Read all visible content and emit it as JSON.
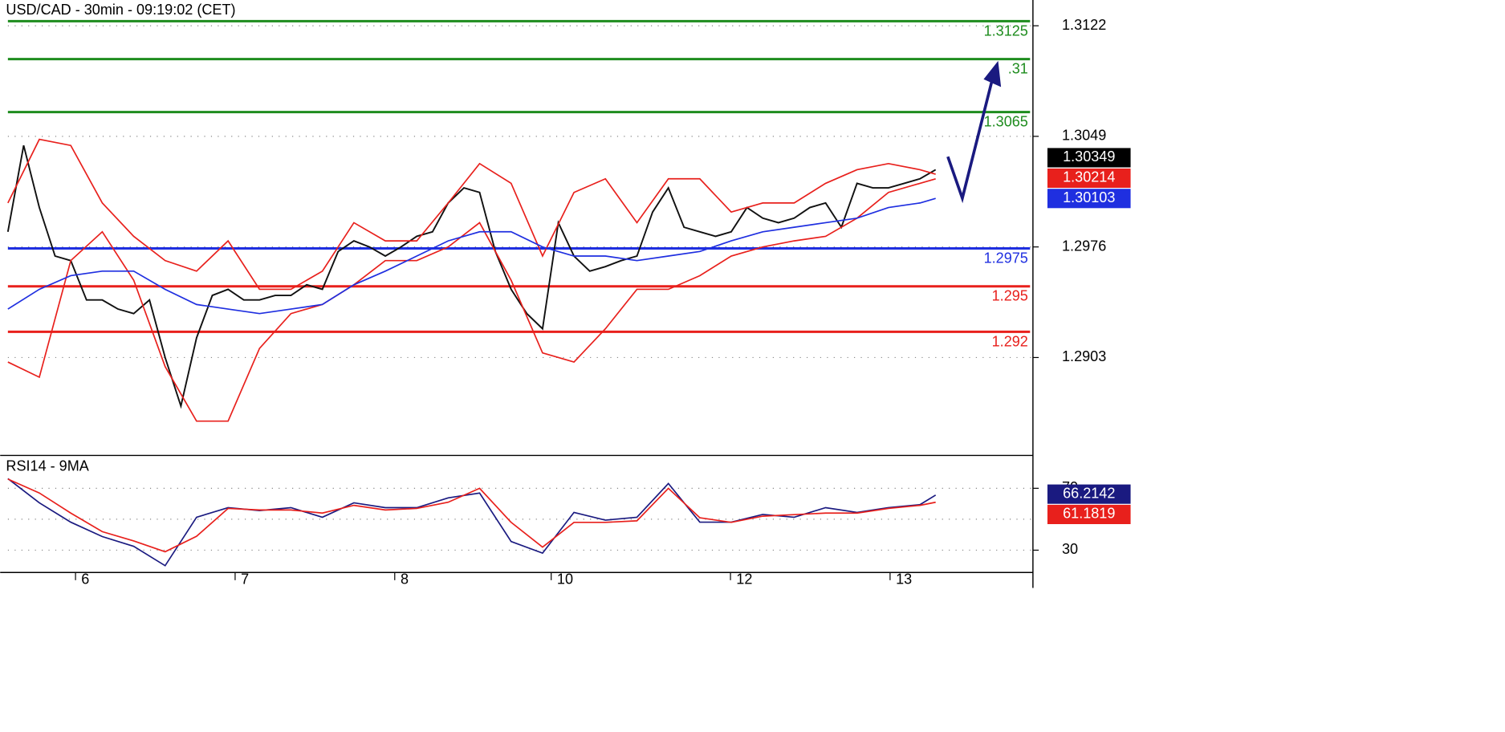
{
  "chart_data": [
    {
      "type": "line",
      "title": "USD/CAD - 30min - 09:19:02 (CET)",
      "xlim": [
        0,
        130
      ],
      "ylim": [
        1.2839,
        1.3139
      ],
      "yticks": [
        1.3122,
        1.3049,
        1.2976,
        1.2903
      ],
      "grid": true,
      "series": [
        {
          "color": "#111111",
          "x": [
            0,
            2,
            4,
            6,
            8,
            10,
            12,
            14,
            16,
            18,
            20,
            22,
            24,
            26,
            28,
            30,
            32,
            34,
            36,
            38,
            40,
            42,
            44,
            46,
            48,
            50,
            52,
            54,
            56,
            58,
            60,
            62,
            64,
            66,
            68,
            70,
            72,
            74,
            76,
            78,
            80,
            82,
            84,
            86,
            88,
            90,
            92,
            94,
            96,
            98,
            100,
            102,
            104,
            106,
            108,
            110,
            112,
            114,
            116,
            118
          ],
          "values": [
            1.2986,
            1.3043,
            1.3002,
            1.297,
            1.2967,
            1.2941,
            1.2941,
            1.2935,
            1.2932,
            1.2941,
            1.2903,
            1.2871,
            1.2916,
            1.2944,
            1.2948,
            1.2941,
            1.2941,
            1.2944,
            1.2944,
            1.2951,
            1.2948,
            1.2973,
            1.298,
            1.2976,
            1.297,
            1.2976,
            1.2983,
            1.2986,
            1.3005,
            1.3015,
            1.3012,
            1.2973,
            1.2948,
            1.2932,
            1.2922,
            1.2992,
            1.297,
            1.296,
            1.2963,
            1.2967,
            1.297,
            1.2999,
            1.3015,
            1.2989,
            1.2986,
            1.2983,
            1.2986,
            1.3002,
            1.2995,
            1.2992,
            1.2995,
            1.3002,
            1.3005,
            1.2989,
            1.3018,
            1.3015,
            1.3015,
            1.3018,
            1.3021,
            1.3027
          ]
        },
        {
          "color": "#e8201c",
          "x": [
            0,
            4,
            8,
            12,
            16,
            20,
            24,
            28,
            32,
            36,
            40,
            44,
            48,
            52,
            56,
            60,
            64,
            68,
            72,
            76,
            80,
            84,
            88,
            92,
            96,
            100,
            104,
            108,
            112,
            116,
            118
          ],
          "values": [
            1.3005,
            1.3047,
            1.3043,
            1.3005,
            1.2983,
            1.2967,
            1.296,
            1.298,
            1.2948,
            1.2948,
            1.296,
            1.2992,
            1.298,
            1.298,
            1.3005,
            1.3031,
            1.3018,
            1.297,
            1.3012,
            1.3021,
            1.2992,
            1.3021,
            1.3021,
            1.2999,
            1.3005,
            1.3005,
            1.3018,
            1.3027,
            1.3031,
            1.3027,
            1.3024
          ]
        },
        {
          "color": "#e8201c",
          "x": [
            0,
            4,
            8,
            12,
            16,
            20,
            24,
            28,
            32,
            36,
            40,
            44,
            48,
            52,
            56,
            60,
            64,
            68,
            72,
            76,
            80,
            84,
            88,
            92,
            96,
            100,
            104,
            108,
            112,
            116,
            118
          ],
          "values": [
            1.29,
            1.289,
            1.2967,
            1.2986,
            1.2954,
            1.2897,
            1.2861,
            1.2861,
            1.2909,
            1.2932,
            1.2938,
            1.2951,
            1.2967,
            1.2967,
            1.2976,
            1.2992,
            1.2954,
            1.2906,
            1.29,
            1.2922,
            1.2948,
            1.2948,
            1.2957,
            1.297,
            1.2976,
            1.298,
            1.2983,
            1.2995,
            1.3012,
            1.3018,
            1.3021
          ]
        },
        {
          "color": "#1f2fe0",
          "x": [
            0,
            4,
            8,
            12,
            16,
            20,
            24,
            28,
            32,
            36,
            40,
            44,
            48,
            52,
            56,
            60,
            64,
            68,
            72,
            76,
            80,
            84,
            88,
            92,
            96,
            100,
            104,
            108,
            112,
            116,
            118
          ],
          "values": [
            1.2935,
            1.2948,
            1.2957,
            1.296,
            1.296,
            1.2948,
            1.2938,
            1.2935,
            1.2932,
            1.2935,
            1.2938,
            1.2951,
            1.296,
            1.297,
            1.298,
            1.2986,
            1.2986,
            1.2976,
            1.297,
            1.297,
            1.2967,
            1.297,
            1.2973,
            1.298,
            1.2986,
            1.2989,
            1.2992,
            1.2995,
            1.3002,
            1.3005,
            1.3008
          ]
        }
      ],
      "levels": [
        {
          "value": 1.3125,
          "label": "1.3125",
          "color": "#1e8c1e"
        },
        {
          "value": 1.31,
          "label": ".31",
          "color": "#1e8c1e"
        },
        {
          "value": 1.3065,
          "label": "1.3065",
          "color": "#1e8c1e"
        },
        {
          "value": 1.2975,
          "label": "1.2975",
          "color": "#1f2fe0"
        },
        {
          "value": 1.295,
          "label": "1.295",
          "color": "#e8201c"
        },
        {
          "value": 1.292,
          "label": "1.292",
          "color": "#e8201c"
        }
      ],
      "price_tags": [
        {
          "value": 1.30349,
          "color": "#000000"
        },
        {
          "value": 1.30214,
          "color": "#e8201c"
        },
        {
          "value": 1.30103,
          "color": "#1f2fe0"
        }
      ]
    },
    {
      "type": "line",
      "title": "RSI14 - 9MA",
      "xlim": [
        0,
        130
      ],
      "ylim": [
        15.6,
        90.6
      ],
      "xticks": [
        {
          "value": 8.6,
          "label": "6"
        },
        {
          "value": 28.9,
          "label": "7"
        },
        {
          "value": 49.2,
          "label": "8"
        },
        {
          "value": 69.1,
          "label": "10"
        },
        {
          "value": 91.9,
          "label": "12"
        },
        {
          "value": 112.2,
          "label": "13"
        }
      ],
      "yticks": [
        30,
        70
      ],
      "ygrid": [
        30,
        50,
        70
      ],
      "series": [
        {
          "color": "#1a1a80",
          "x": [
            0,
            4,
            8,
            12,
            16,
            20,
            24,
            28,
            32,
            36,
            40,
            44,
            48,
            52,
            56,
            60,
            64,
            68,
            72,
            76,
            80,
            84,
            88,
            92,
            96,
            100,
            104,
            108,
            112,
            116,
            118
          ],
          "values": [
            76.2,
            60.6,
            48.1,
            38.8,
            32.5,
            20.0,
            51.3,
            57.5,
            55.6,
            57.5,
            51.3,
            60.6,
            57.5,
            57.5,
            63.8,
            66.9,
            35.6,
            28.1,
            54.4,
            49.4,
            51.3,
            73.1,
            48.1,
            48.1,
            53.1,
            51.3,
            57.5,
            54.4,
            57.5,
            59.4,
            65.6
          ]
        },
        {
          "color": "#e8201c",
          "x": [
            0,
            4,
            8,
            12,
            16,
            20,
            24,
            28,
            32,
            36,
            40,
            44,
            48,
            52,
            56,
            60,
            64,
            68,
            72,
            76,
            80,
            84,
            88,
            92,
            96,
            100,
            104,
            108,
            112,
            116,
            118
          ],
          "values": [
            76,
            67,
            54,
            42,
            36,
            29,
            39,
            57,
            56,
            56,
            54,
            59,
            56,
            57,
            61,
            70,
            48,
            32,
            48,
            48,
            49,
            70,
            51,
            48,
            52,
            53,
            54,
            54,
            57,
            59,
            61
          ]
        }
      ],
      "value_tags": [
        {
          "value": 66.2142,
          "color": "#1a1a80"
        },
        {
          "value": 61.1819,
          "color": "#e8201c"
        }
      ]
    }
  ]
}
